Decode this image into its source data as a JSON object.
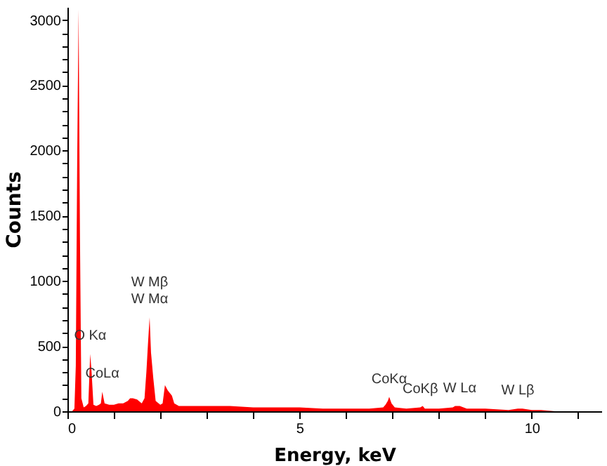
{
  "chart_data": {
    "type": "area",
    "xlabel": "Energy, keV",
    "ylabel": "Counts",
    "color": "#ff0000",
    "x": [
      0.0,
      0.1,
      0.15,
      0.18,
      0.21,
      0.24,
      0.27,
      0.3,
      0.35,
      0.4,
      0.45,
      0.49,
      0.52,
      0.56,
      0.62,
      0.68,
      0.72,
      0.75,
      0.8,
      0.9,
      1.0,
      1.1,
      1.2,
      1.3,
      1.35,
      1.41,
      1.5,
      1.6,
      1.66,
      1.7,
      1.74,
      1.77,
      1.8,
      1.85,
      1.9,
      2.0,
      2.05,
      2.1,
      2.16,
      2.25,
      2.3,
      2.4,
      2.6,
      3.0,
      3.5,
      4.0,
      4.5,
      5.0,
      5.5,
      6.0,
      6.5,
      6.8,
      6.85,
      6.9,
      6.93,
      6.98,
      7.05,
      7.3,
      7.6,
      7.65,
      7.7,
      8.0,
      8.3,
      8.35,
      8.45,
      8.6,
      9.0,
      9.5,
      9.7,
      9.8,
      10.0,
      10.2,
      10.5,
      11.0,
      11.5
    ],
    "values": [
      0,
      0,
      20,
      350,
      1920,
      3080,
      1330,
      100,
      30,
      40,
      60,
      440,
      300,
      50,
      40,
      50,
      60,
      150,
      60,
      50,
      50,
      60,
      60,
      80,
      100,
      100,
      90,
      60,
      100,
      300,
      550,
      720,
      450,
      250,
      80,
      50,
      60,
      200,
      160,
      120,
      60,
      40,
      40,
      40,
      40,
      30,
      30,
      30,
      20,
      20,
      20,
      30,
      50,
      80,
      110,
      60,
      30,
      20,
      30,
      40,
      20,
      20,
      30,
      40,
      40,
      20,
      20,
      10,
      20,
      20,
      10,
      10,
      0,
      0,
      0
    ],
    "xlim": [
      0,
      11.5
    ],
    "ylim": [
      0,
      3100
    ],
    "xticks": [
      0,
      {
        "value": 1,
        "label": null
      },
      {
        "value": 2,
        "label": null
      },
      {
        "value": 3,
        "label": null
      },
      {
        "value": 4,
        "label": null
      },
      5,
      {
        "value": 6,
        "label": null
      },
      {
        "value": 7,
        "label": null
      },
      {
        "value": 8,
        "label": null
      },
      {
        "value": 9,
        "label": null
      },
      10,
      {
        "value": 11,
        "label": null
      }
    ],
    "yticks": [
      0,
      {
        "value": 100,
        "label": null
      },
      {
        "value": 200,
        "label": null
      },
      {
        "value": 300,
        "label": null
      },
      {
        "value": 400,
        "label": null
      },
      500,
      {
        "value": 600,
        "label": null
      },
      {
        "value": 700,
        "label": null
      },
      {
        "value": 800,
        "label": null
      },
      {
        "value": 900,
        "label": null
      },
      1000,
      {
        "value": 1100,
        "label": null
      },
      {
        "value": 1200,
        "label": null
      },
      {
        "value": 1300,
        "label": null
      },
      {
        "value": 1400,
        "label": null
      },
      1500,
      {
        "value": 1600,
        "label": null
      },
      {
        "value": 1700,
        "label": null
      },
      {
        "value": 1800,
        "label": null
      },
      {
        "value": 1900,
        "label": null
      },
      2000,
      {
        "value": 2100,
        "label": null
      },
      {
        "value": 2200,
        "label": null
      },
      {
        "value": 2300,
        "label": null
      },
      {
        "value": 2400,
        "label": null
      },
      2500,
      {
        "value": 2600,
        "label": null
      },
      {
        "value": 2700,
        "label": null
      },
      {
        "value": 2800,
        "label": null
      },
      {
        "value": 2900,
        "label": null
      },
      3000
    ],
    "grid": false,
    "annotations": [
      {
        "text": "O Kα",
        "x": 0.49,
        "y": 440
      },
      {
        "text": "CoLα",
        "x": 0.75,
        "y": 150
      },
      {
        "text": "W Mβ",
        "x": 1.77,
        "y": 720
      },
      {
        "text": "W Mα",
        "x": 1.77,
        "y": 720
      },
      {
        "text": "CoKα",
        "x": 6.93,
        "y": 110
      },
      {
        "text": "CoKβ",
        "x": 7.6,
        "y": 30
      },
      {
        "text": "W Lα",
        "x": 8.45,
        "y": 40
      },
      {
        "text": "W Lβ",
        "x": 9.7,
        "y": 20
      }
    ]
  }
}
